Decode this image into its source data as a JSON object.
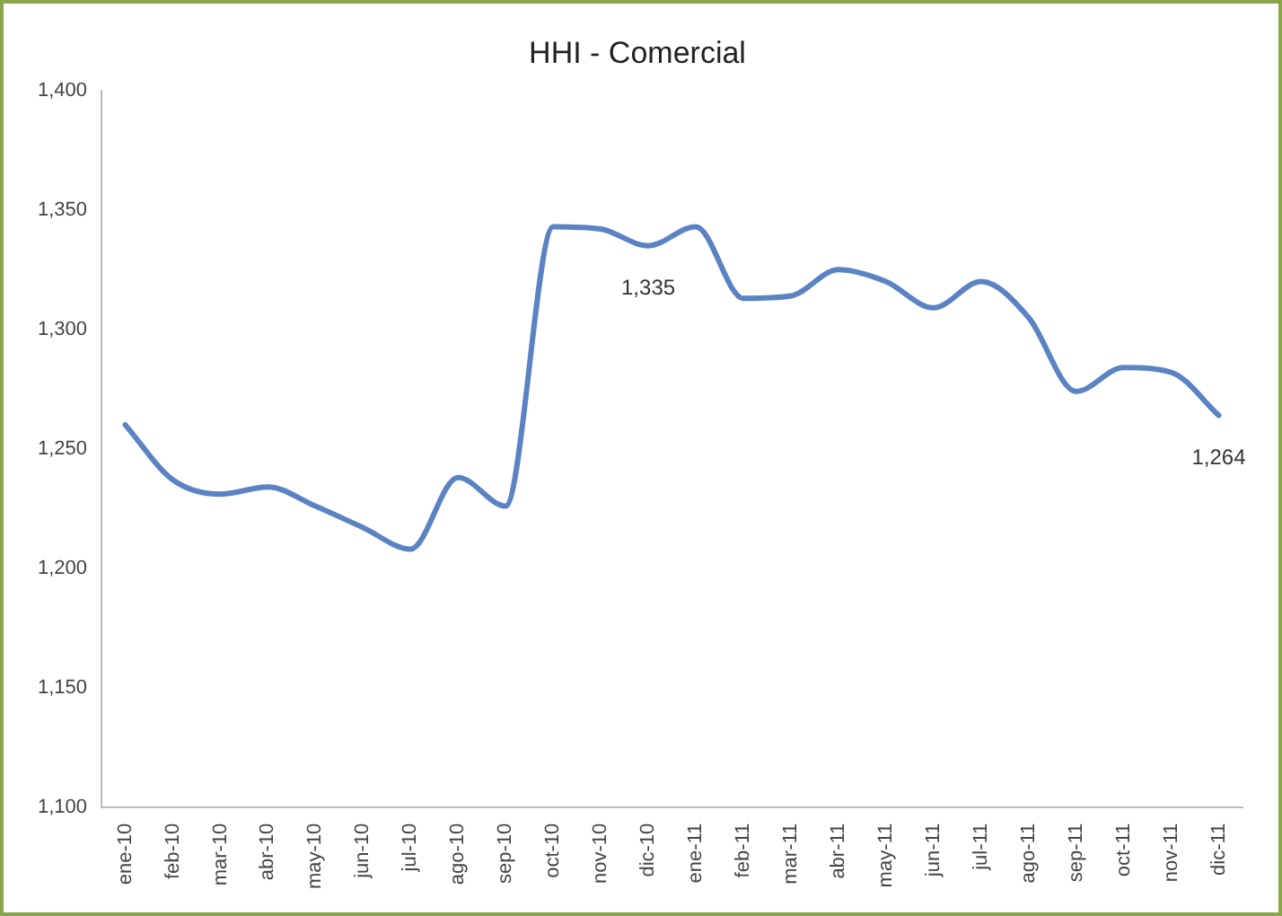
{
  "chart_data": {
    "type": "line",
    "title": "HHI - Comercial",
    "categories": [
      "ene-10",
      "feb-10",
      "mar-10",
      "abr-10",
      "may-10",
      "jun-10",
      "jul-10",
      "ago-10",
      "sep-10",
      "oct-10",
      "nov-10",
      "dic-10",
      "ene-11",
      "feb-11",
      "mar-11",
      "abr-11",
      "may-11",
      "jun-11",
      "jul-11",
      "ago-11",
      "sep-11",
      "oct-11",
      "nov-11",
      "dic-11"
    ],
    "series": [
      {
        "color": "#5b83c4",
        "values": [
          1260,
          1237,
          1231,
          1234,
          1226,
          1217,
          1208,
          1238,
          1226,
          1343,
          1342,
          1335,
          1343,
          1313,
          1314,
          1325,
          1320,
          1309,
          1320,
          1305,
          1274,
          1284,
          1282,
          1264
        ],
        "value_labels": [
          null,
          null,
          null,
          null,
          null,
          null,
          null,
          null,
          null,
          null,
          null,
          "1,335",
          null,
          null,
          null,
          null,
          null,
          null,
          null,
          null,
          null,
          null,
          null,
          "1,264"
        ]
      }
    ],
    "ylim": [
      1100,
      1400
    ],
    "yticks": [
      {
        "value": 1100,
        "label": "1,100"
      },
      {
        "value": 1150,
        "label": "1,150"
      },
      {
        "value": 1200,
        "label": "1,200"
      },
      {
        "value": 1250,
        "label": "1,250"
      },
      {
        "value": 1300,
        "label": "1,300"
      },
      {
        "value": 1350,
        "label": "1,350"
      },
      {
        "value": 1400,
        "label": "1,400"
      }
    ],
    "grid": false,
    "legend": false,
    "marker": "none",
    "line_style": "solid"
  }
}
